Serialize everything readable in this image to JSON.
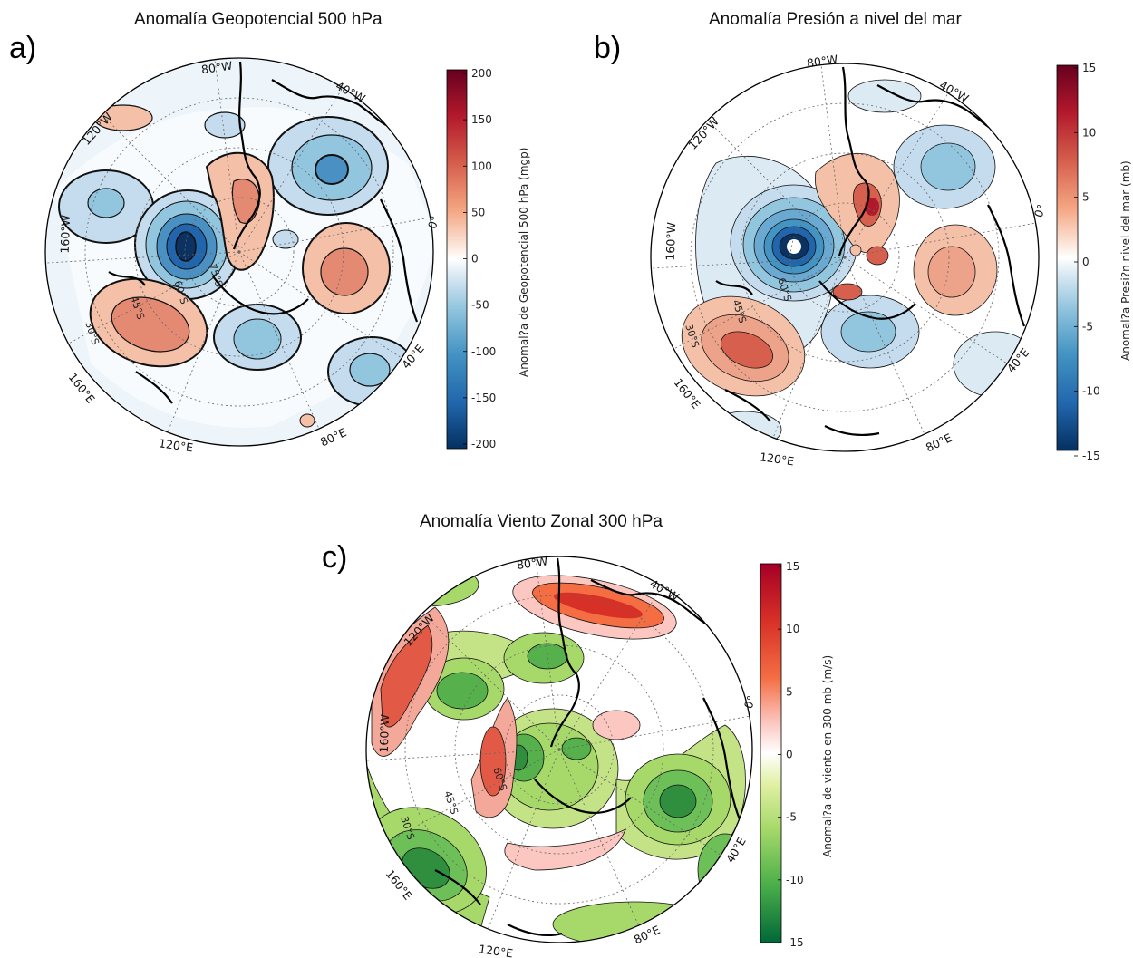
{
  "panels": [
    {
      "id": "a",
      "label": "a)",
      "title": "Anomalía Geopotencial 500 hPa",
      "colorbar": {
        "title": "Anomal?a de Geopotencial 500 hPa (mgp)",
        "ticks": [
          "200",
          "150",
          "100",
          "50",
          "0",
          "-50",
          "-100",
          "-150",
          "-200"
        ],
        "min": -200,
        "max": 200,
        "colormap": "red-white-blue"
      },
      "longitude_labels": [
        "80°W",
        "40°W",
        "0°",
        "40°E",
        "80°E",
        "120°E",
        "160°E",
        "160°W",
        "120°W"
      ],
      "latitude_labels": [
        "30°S",
        "45°S",
        "60°S",
        "75°S"
      ]
    },
    {
      "id": "b",
      "label": "b)",
      "title": "Anomalía Presión a nivel del mar",
      "colorbar": {
        "title": "Anomal?a Presi?n nivel del mar (mb)",
        "ticks": [
          "15",
          "10",
          "5",
          "0",
          "-5",
          "-10",
          "-15"
        ],
        "min": -15,
        "max": 15,
        "colormap": "red-white-blue"
      },
      "longitude_labels": [
        "80°W",
        "40°W",
        "0°",
        "40°E",
        "80°E",
        "120°E",
        "160°E",
        "160°W",
        "120°W"
      ],
      "latitude_labels": [
        "30°S",
        "45°S",
        "60°S"
      ]
    },
    {
      "id": "c",
      "label": "c)",
      "title": "Anomalía Viento Zonal 300 hPa",
      "colorbar": {
        "title": "Anomal?a de viento en 300 mb (m/s)",
        "ticks": [
          "15",
          "10",
          "5",
          "0",
          "-5",
          "-10",
          "-15"
        ],
        "min": -15,
        "max": 15,
        "colormap": "red-white-green"
      },
      "longitude_labels": [
        "80°W",
        "40°W",
        "0°",
        "40°E",
        "80°E",
        "120°E",
        "160°E",
        "160°W",
        "120°W"
      ],
      "latitude_labels": [
        "30°S",
        "45°S",
        "60°S"
      ]
    }
  ],
  "colors": {
    "strong_red": "#8c0a26",
    "red": "#d6604d",
    "light_red": "#f4c0a8",
    "white": "#ffffff",
    "light_blue": "#c4dcee",
    "blue": "#4a90c2",
    "strong_blue": "#0c3261",
    "light_green": "#c4e386",
    "green": "#56b04c",
    "strong_green": "#0b6a2e"
  }
}
